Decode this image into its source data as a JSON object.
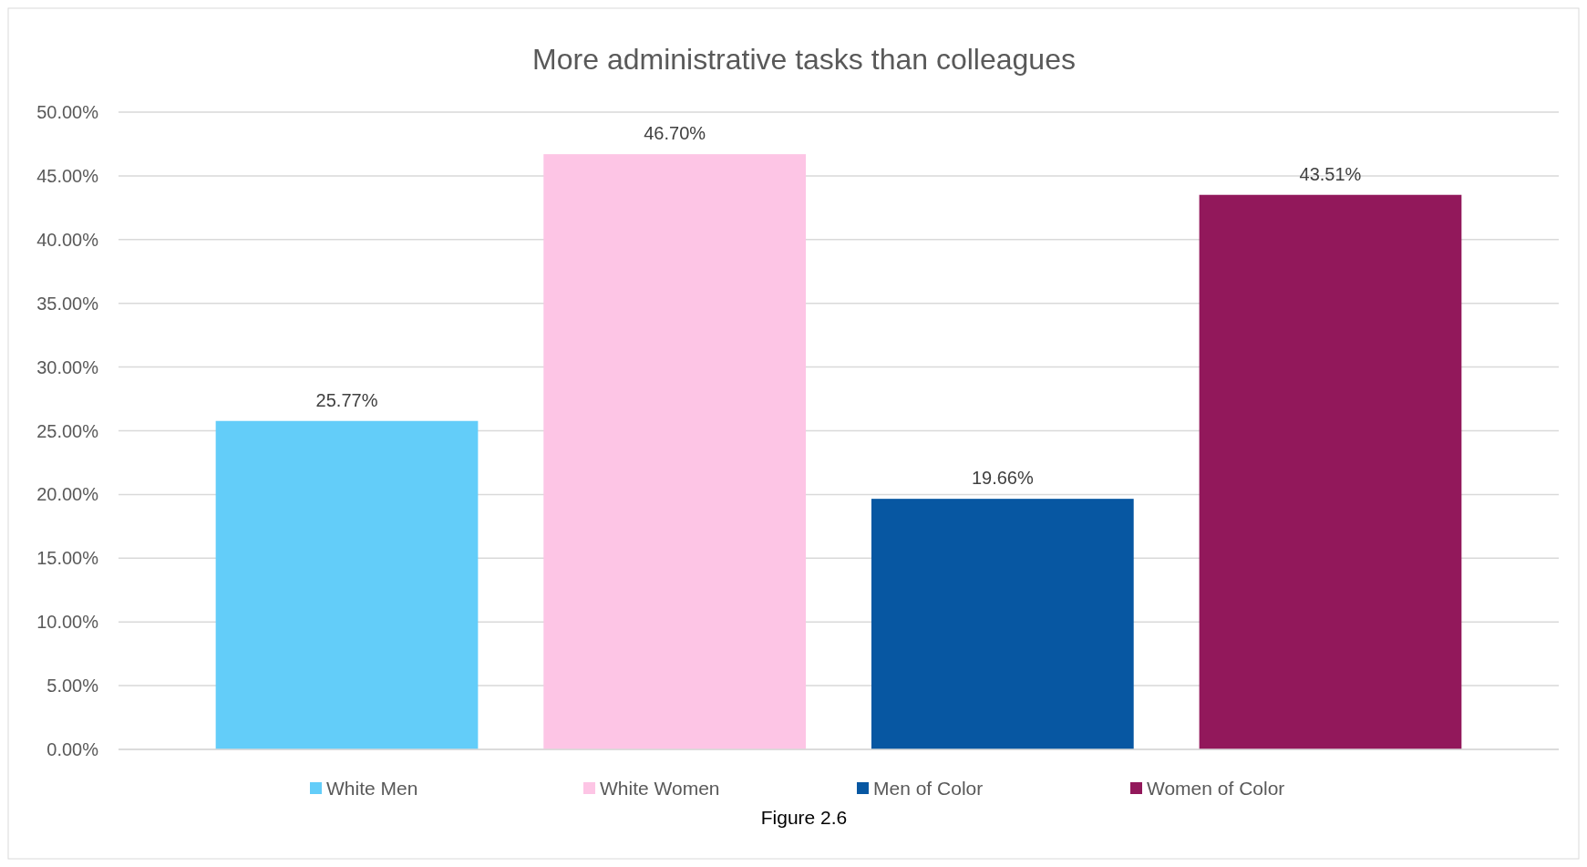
{
  "chart_data": {
    "type": "bar",
    "title": "More administrative tasks than colleagues",
    "categories": [
      null
    ],
    "series": [
      {
        "name": "White Men",
        "color": "#63cdf9",
        "values": [
          25.77
        ],
        "value_labels": [
          "25.77%"
        ]
      },
      {
        "name": "White Women",
        "color": "#fdc5e5",
        "values": [
          46.7
        ],
        "value_labels": [
          "46.70%"
        ]
      },
      {
        "name": "Men of Color",
        "color": "#0757a2",
        "values": [
          19.66
        ],
        "value_labels": [
          "19.66%"
        ]
      },
      {
        "name": "Women of Color",
        "color": "#92185b",
        "values": [
          43.51
        ],
        "value_labels": [
          "43.51%"
        ]
      }
    ],
    "ylim": [
      0,
      50
    ],
    "yticks": [
      {
        "value": 0,
        "label": "0.00%"
      },
      {
        "value": 5,
        "label": "5.00%"
      },
      {
        "value": 10,
        "label": "10.00%"
      },
      {
        "value": 15,
        "label": "15.00%"
      },
      {
        "value": 20,
        "label": "20.00%"
      },
      {
        "value": 25,
        "label": "25.00%"
      },
      {
        "value": 30,
        "label": "30.00%"
      },
      {
        "value": 35,
        "label": "35.00%"
      },
      {
        "value": 40,
        "label": "40.00%"
      },
      {
        "value": 45,
        "label": "45.00%"
      },
      {
        "value": 50,
        "label": "50.00%"
      }
    ],
    "grid": "y",
    "legend": "bottom",
    "annotations": [
      "Figure 2.6"
    ]
  }
}
